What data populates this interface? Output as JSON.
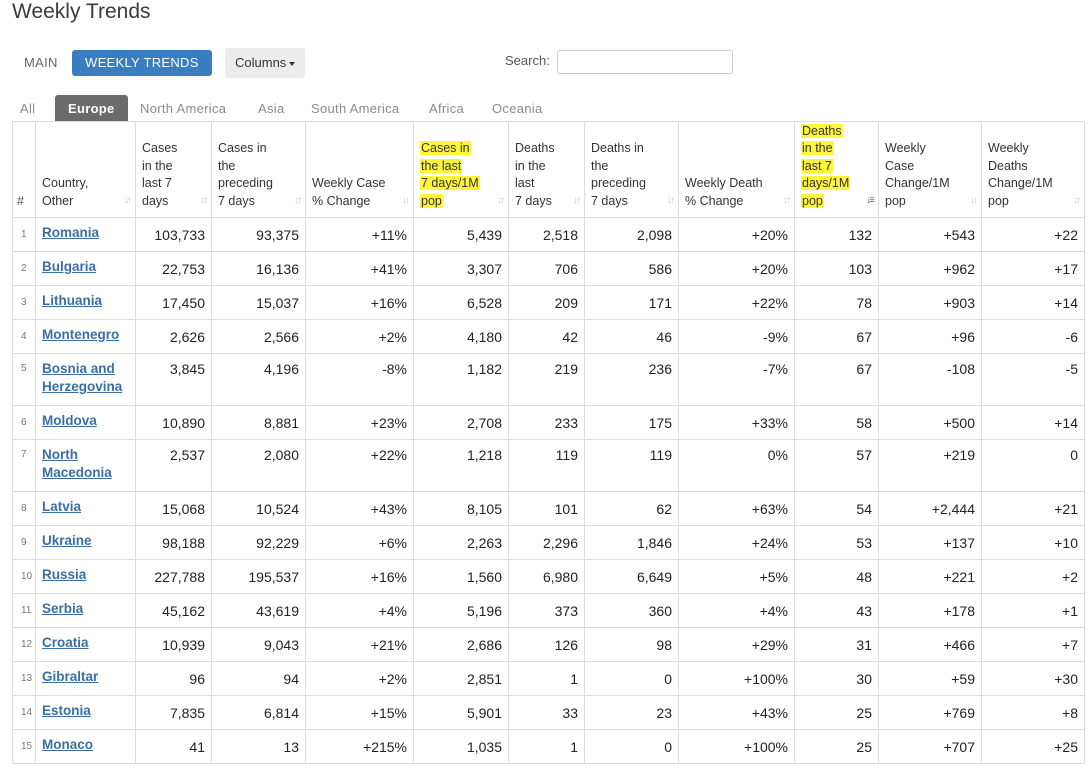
{
  "title": "Weekly Trends",
  "toolbar": {
    "main_label": "MAIN",
    "weekly_label": "WEEKLY TRENDS",
    "columns_label": "Columns",
    "search_label": "Search:",
    "search_value": ""
  },
  "tabs": [
    "All",
    "Europe",
    "North America",
    "Asia",
    "South America",
    "Africa",
    "Oceania"
  ],
  "active_tab": "Europe",
  "headers": [
    [
      "#"
    ],
    [
      "Country,",
      "Other"
    ],
    [
      "Cases",
      "in the",
      "last 7",
      "days"
    ],
    [
      "Cases in",
      "the",
      "preceding",
      "7 days"
    ],
    [
      "Weekly Case",
      "% Change"
    ],
    [
      "Cases in",
      "the last",
      "7 days/1M",
      "pop"
    ],
    [
      "Deaths",
      "in the",
      "last",
      "7 days"
    ],
    [
      "Deaths in",
      "the",
      "preceding",
      "7 days"
    ],
    [
      "Weekly Death",
      "% Change"
    ],
    [
      "Deaths",
      "in the",
      "last 7",
      "days/1M",
      "pop"
    ],
    [
      "Weekly",
      "Case",
      "Change/1M",
      "pop"
    ],
    [
      "Weekly",
      "Deaths",
      "Change/1M",
      "pop"
    ]
  ],
  "highlighted_columns": [
    5,
    9
  ],
  "sorted_column": 9,
  "highlight_color": "#fff53a",
  "accent_color": "#3a7ebf",
  "rows": [
    [
      "1",
      "Romania",
      "103,733",
      "93,375",
      "+11%",
      "5,439",
      "2,518",
      "2,098",
      "+20%",
      "132",
      "+543",
      "+22"
    ],
    [
      "2",
      "Bulgaria",
      "22,753",
      "16,136",
      "+41%",
      "3,307",
      "706",
      "586",
      "+20%",
      "103",
      "+962",
      "+17"
    ],
    [
      "3",
      "Lithuania",
      "17,450",
      "15,037",
      "+16%",
      "6,528",
      "209",
      "171",
      "+22%",
      "78",
      "+903",
      "+14"
    ],
    [
      "4",
      "Montenegro",
      "2,626",
      "2,566",
      "+2%",
      "4,180",
      "42",
      "46",
      "-9%",
      "67",
      "+96",
      "-6"
    ],
    [
      "5",
      "Bosnia and Herzegovina",
      "3,845",
      "4,196",
      "-8%",
      "1,182",
      "219",
      "236",
      "-7%",
      "67",
      "-108",
      "-5"
    ],
    [
      "6",
      "Moldova",
      "10,890",
      "8,881",
      "+23%",
      "2,708",
      "233",
      "175",
      "+33%",
      "58",
      "+500",
      "+14"
    ],
    [
      "7",
      "North Macedonia",
      "2,537",
      "2,080",
      "+22%",
      "1,218",
      "119",
      "119",
      "0%",
      "57",
      "+219",
      "0"
    ],
    [
      "8",
      "Latvia",
      "15,068",
      "10,524",
      "+43%",
      "8,105",
      "101",
      "62",
      "+63%",
      "54",
      "+2,444",
      "+21"
    ],
    [
      "9",
      "Ukraine",
      "98,188",
      "92,229",
      "+6%",
      "2,263",
      "2,296",
      "1,846",
      "+24%",
      "53",
      "+137",
      "+10"
    ],
    [
      "10",
      "Russia",
      "227,788",
      "195,537",
      "+16%",
      "1,560",
      "6,980",
      "6,649",
      "+5%",
      "48",
      "+221",
      "+2"
    ],
    [
      "11",
      "Serbia",
      "45,162",
      "43,619",
      "+4%",
      "5,196",
      "373",
      "360",
      "+4%",
      "43",
      "+178",
      "+1"
    ],
    [
      "12",
      "Croatia",
      "10,939",
      "9,043",
      "+21%",
      "2,686",
      "126",
      "98",
      "+29%",
      "31",
      "+466",
      "+7"
    ],
    [
      "13",
      "Gibraltar",
      "96",
      "94",
      "+2%",
      "2,851",
      "1",
      "0",
      "+100%",
      "30",
      "+59",
      "+30"
    ],
    [
      "14",
      "Estonia",
      "7,835",
      "6,814",
      "+15%",
      "5,901",
      "33",
      "23",
      "+43%",
      "25",
      "+769",
      "+8"
    ],
    [
      "15",
      "Monaco",
      "41",
      "13",
      "+215%",
      "1,035",
      "1",
      "0",
      "+100%",
      "25",
      "+707",
      "+25"
    ]
  ]
}
